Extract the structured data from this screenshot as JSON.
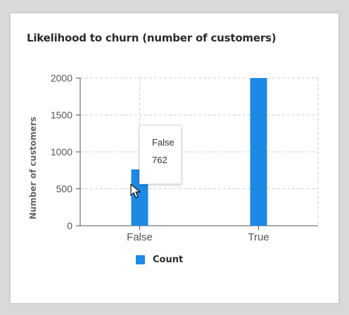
{
  "card": {
    "title": "Likelihood to churn (number of customers)"
  },
  "chart_data": {
    "type": "bar",
    "categories": [
      "False",
      "True"
    ],
    "series": [
      {
        "name": "Count",
        "values": [
          762,
          2000
        ],
        "color": "#1e88e5"
      }
    ],
    "ylabel": "Number of customers",
    "xlabel": "",
    "ylim": [
      0,
      2000
    ],
    "yticks": [
      0,
      500,
      1000,
      1500,
      2000
    ],
    "grid": true,
    "legend_position": "bottom"
  },
  "tooltip": {
    "label": "False",
    "value": "762"
  },
  "legend": {
    "label": "Count",
    "color": "#1e88e5"
  },
  "cursor": {
    "icon": "mouse-pointer-icon"
  }
}
